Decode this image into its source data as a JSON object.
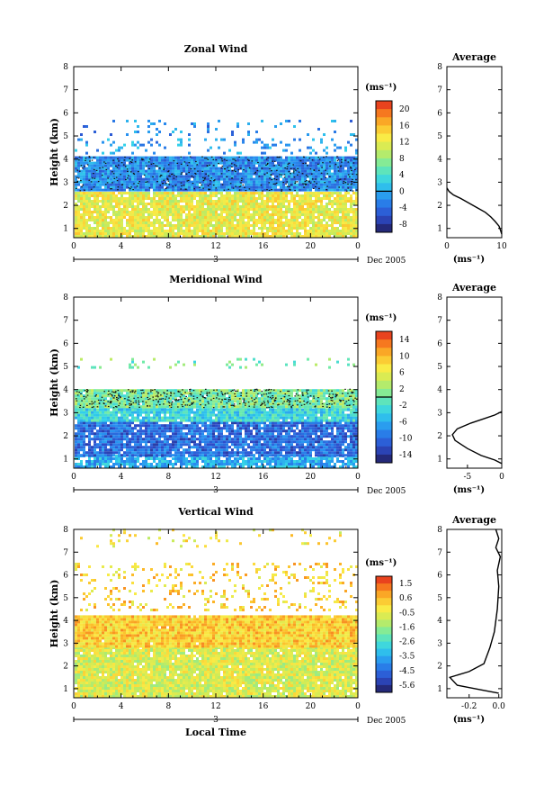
{
  "chart_data": [
    {
      "type": "heatmap",
      "key": "zonal",
      "title": "Zonal Wind",
      "ylabel": "Height (km)",
      "xlabel": "",
      "x_ticks": [
        "0",
        "4",
        "8",
        "12",
        "16",
        "20",
        "0"
      ],
      "y_ticks": [
        "1",
        "2",
        "3",
        "4",
        "5",
        "6",
        "7",
        "8"
      ],
      "xlim": [
        0,
        24
      ],
      "ylim": [
        0.6,
        8
      ],
      "day_label": "3",
      "date_label": "Dec 2005",
      "colorbar": {
        "unit": "(ms⁻¹)",
        "min": -10,
        "max": 22,
        "ticks": [
          "20",
          "16",
          "12",
          "8",
          "4",
          "0",
          "-4",
          "-8"
        ],
        "zero_line": 0
      },
      "bands": [
        {
          "y0": 0.6,
          "y1": 2.5,
          "value": 12,
          "density": 0.9
        },
        {
          "y0": 2.6,
          "y1": 4.1,
          "value": -2,
          "density": 0.97
        },
        {
          "y0": 4.2,
          "y1": 4.8,
          "value": -1,
          "density": 0.15
        },
        {
          "y0": 5.0,
          "y1": 5.6,
          "value": -2,
          "density": 0.12
        }
      ],
      "profile": {
        "title": "Average",
        "xlabel": "(ms⁻¹)",
        "x_ticks": [
          "0",
          "10"
        ],
        "xlim": [
          0,
          10
        ],
        "ylim": [
          0.6,
          8
        ],
        "y_ticks": [
          "1",
          "2",
          "3",
          "4",
          "5",
          "6",
          "7",
          "8"
        ],
        "points": [
          [
            10,
            0.75
          ],
          [
            9.8,
            0.9
          ],
          [
            9.5,
            1.1
          ],
          [
            8.8,
            1.3
          ],
          [
            8.0,
            1.5
          ],
          [
            7.0,
            1.7
          ],
          [
            5.5,
            1.9
          ],
          [
            4.0,
            2.1
          ],
          [
            2.5,
            2.3
          ],
          [
            1.2,
            2.45
          ],
          [
            0.4,
            2.6
          ],
          [
            0,
            2.75
          ]
        ]
      }
    },
    {
      "type": "heatmap",
      "key": "meridional",
      "title": "Meridional Wind",
      "ylabel": "Height (km)",
      "xlabel": "",
      "x_ticks": [
        "0",
        "4",
        "8",
        "12",
        "16",
        "20",
        "0"
      ],
      "y_ticks": [
        "1",
        "2",
        "3",
        "4",
        "5",
        "6",
        "7",
        "8"
      ],
      "xlim": [
        0,
        24
      ],
      "ylim": [
        0.6,
        8
      ],
      "day_label": "3",
      "date_label": "Dec 2005",
      "colorbar": {
        "unit": "(ms⁻¹)",
        "min": -16,
        "max": 16,
        "ticks": [
          "14",
          "10",
          "6",
          "2",
          "-2",
          "-6",
          "-10",
          "-14"
        ],
        "zero_line": 0
      },
      "bands": [
        {
          "y0": 0.6,
          "y1": 1.1,
          "value": -6,
          "density": 0.8
        },
        {
          "y0": 1.1,
          "y1": 2.6,
          "value": -10,
          "density": 0.9
        },
        {
          "y0": 2.6,
          "y1": 3.2,
          "value": -3,
          "density": 0.95
        },
        {
          "y0": 3.2,
          "y1": 4.0,
          "value": 0.5,
          "density": 0.97
        },
        {
          "y0": 4.9,
          "y1": 5.3,
          "value": 0,
          "density": 0.12
        }
      ],
      "profile": {
        "title": "Average",
        "xlabel": "(ms⁻¹)",
        "x_ticks": [
          "-5",
          "0"
        ],
        "xlim": [
          -8,
          0
        ],
        "ylim": [
          0.6,
          8
        ],
        "y_ticks": [
          "1",
          "2",
          "3",
          "4",
          "5",
          "6",
          "7",
          "8"
        ],
        "points": [
          [
            0,
            0.8
          ],
          [
            -1,
            0.95
          ],
          [
            -3,
            1.15
          ],
          [
            -5,
            1.45
          ],
          [
            -6.8,
            1.8
          ],
          [
            -7.2,
            2.05
          ],
          [
            -6.5,
            2.3
          ],
          [
            -4.5,
            2.55
          ],
          [
            -2.5,
            2.75
          ],
          [
            -1,
            2.9
          ],
          [
            0,
            3.05
          ]
        ]
      }
    },
    {
      "type": "heatmap",
      "key": "vertical",
      "title": "Vertical Wind",
      "ylabel": "Height (km)",
      "xlabel": "Local Time",
      "x_ticks": [
        "0",
        "4",
        "8",
        "12",
        "16",
        "20",
        "0"
      ],
      "y_ticks": [
        "1",
        "2",
        "3",
        "4",
        "5",
        "6",
        "7",
        "8"
      ],
      "xlim": [
        0,
        24
      ],
      "ylim": [
        0.6,
        8
      ],
      "day_label": "3",
      "date_label": "Dec 2005",
      "colorbar": {
        "unit": "(ms⁻¹)",
        "min": -6,
        "max": 2,
        "ticks": [
          "1.5",
          "0.6",
          "-0.5",
          "-1.6",
          "-2.6",
          "-3.5",
          "-4.5",
          "-5.6"
        ],
        "zero_line": null
      },
      "bands": [
        {
          "y0": 0.6,
          "y1": 2.8,
          "value": -0.7,
          "density": 0.95
        },
        {
          "y0": 2.8,
          "y1": 4.2,
          "value": 0.2,
          "density": 0.99
        },
        {
          "y0": 4.4,
          "y1": 6.5,
          "value": 0.1,
          "density": 0.16
        },
        {
          "y0": 7.2,
          "y1": 8.0,
          "value": -0.3,
          "density": 0.08
        }
      ],
      "profile": {
        "title": "Average",
        "xlabel": "(ms⁻¹)",
        "x_ticks": [
          "-0.2",
          "0.0"
        ],
        "xlim": [
          -0.35,
          0.02
        ],
        "ylim": [
          0.6,
          8
        ],
        "y_ticks": [
          "1",
          "2",
          "3",
          "4",
          "5",
          "6",
          "7",
          "8"
        ],
        "points": [
          [
            0,
            0.8
          ],
          [
            -0.12,
            0.95
          ],
          [
            -0.28,
            1.15
          ],
          [
            -0.33,
            1.5
          ],
          [
            -0.2,
            1.75
          ],
          [
            -0.1,
            2.1
          ],
          [
            -0.06,
            2.8
          ],
          [
            -0.03,
            3.5
          ],
          [
            -0.01,
            4.5
          ],
          [
            0.0,
            5.5
          ],
          [
            -0.01,
            6.2
          ],
          [
            0.01,
            6.8
          ],
          [
            -0.02,
            7.2
          ],
          [
            0.0,
            7.6
          ],
          [
            -0.02,
            8.0
          ]
        ]
      }
    }
  ]
}
